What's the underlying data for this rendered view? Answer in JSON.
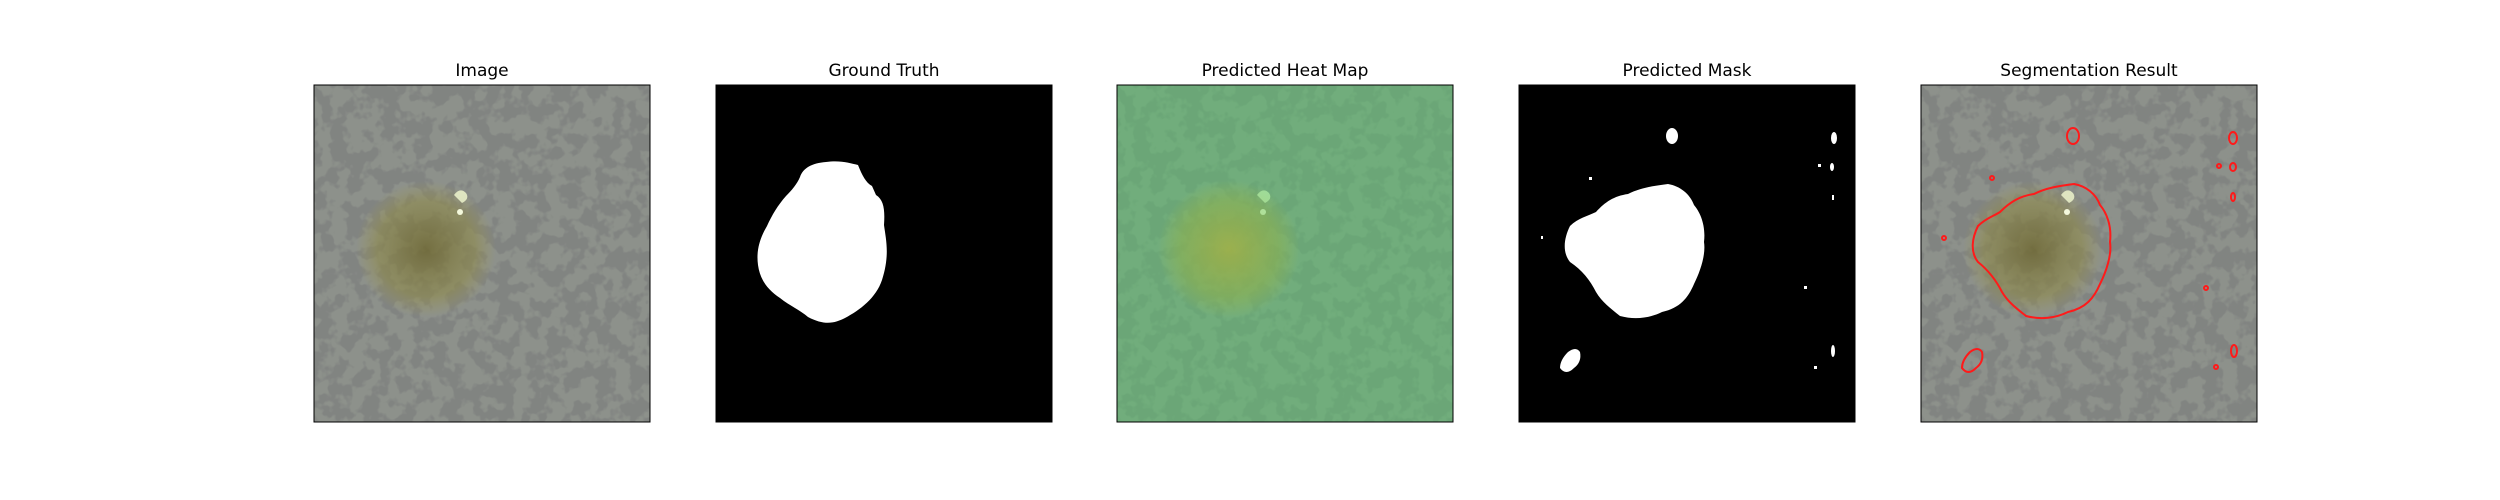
{
  "figure": {
    "panels": [
      {
        "title": "Image"
      },
      {
        "title": "Ground Truth"
      },
      {
        "title": "Predicted Heat Map"
      },
      {
        "title": "Predicted Mask"
      },
      {
        "title": "Segmentation Result"
      }
    ]
  },
  "colors": {
    "background": "#ffffff",
    "texture_base": "#8d918b",
    "texture_dark": "#3a3b39",
    "lesion_tint": "#a39a52",
    "heatmap_green": "#4fd16b",
    "mask_fg": "#ffffff",
    "mask_bg": "#000000",
    "contour": "#ff1a1a"
  }
}
